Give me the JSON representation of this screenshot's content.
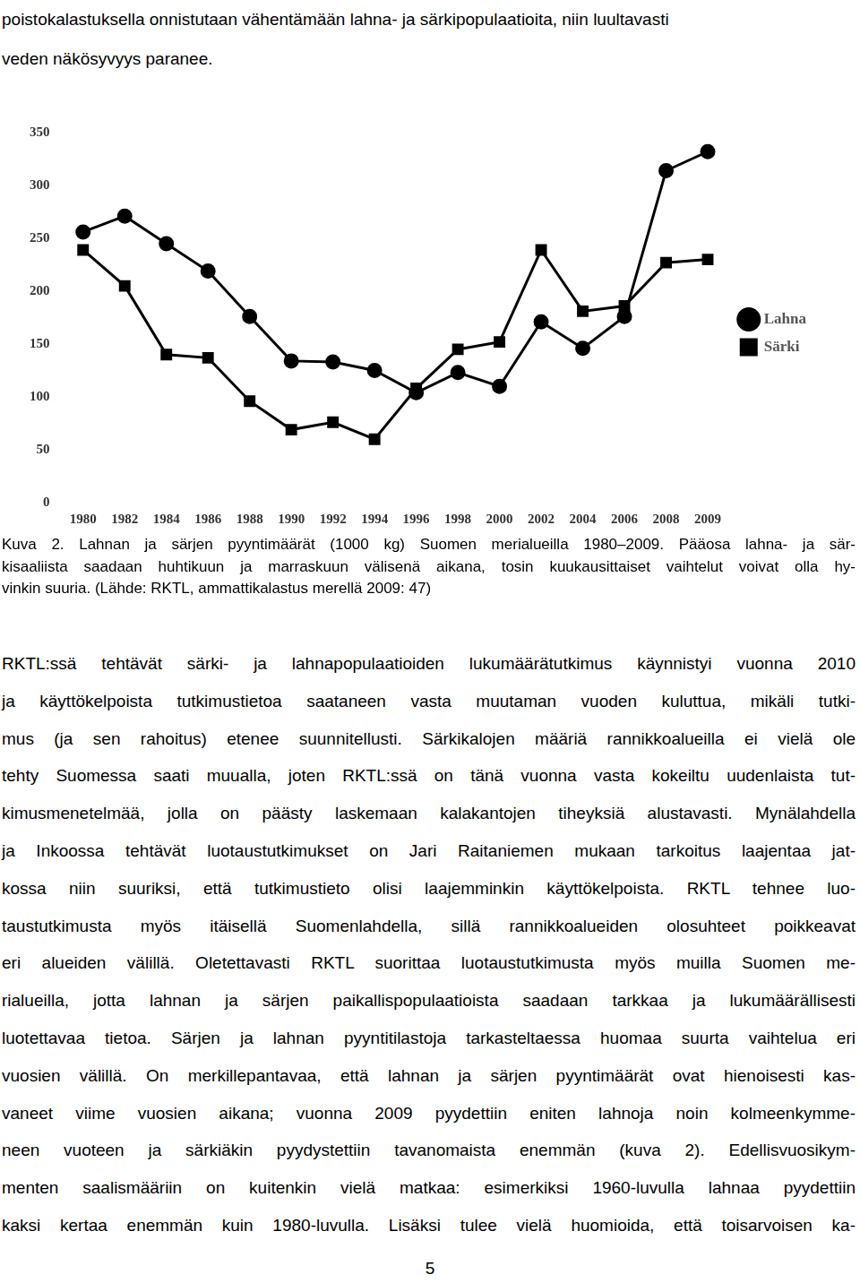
{
  "document": {
    "top_text": [
      "poistokalastuksella onnistutaan vähentämään lahna- ja särkipopulaatioita, niin luultavasti",
      "veden näkösyvyys paranee."
    ],
    "caption": [
      "Kuva 2. Lahnan ja särjen pyyntimäärät (1000 kg) Suomen merialueilla 1980–2009. Pääosa lahna- ja sär-",
      "kisaaliista saadaan huhtikuun ja marraskuun välisenä aikana, tosin kuukausittaiset vaihtelut voivat olla hy-",
      "vinkin suuria. (Lähde: RKTL, ammattikalastus merellä 2009: 47)"
    ],
    "body": [
      "RKTL:ssä tehtävät särki- ja lahnapopulaatioiden lukumäärätutkimus käynnistyi vuonna 2010",
      "ja käyttökelpoista tutkimustietoa saataneen vasta muutaman vuoden kuluttua, mikäli tutki-",
      "mus (ja sen rahoitus) etenee suunnitellusti. Särkikalojen määriä rannikkoalueilla ei vielä ole",
      "tehty Suomessa saati muualla, joten RKTL:ssä on tänä vuonna vasta kokeiltu uudenlaista tut-",
      "kimusmenetelmää, jolla on päästy laskemaan kalakantojen tiheyksiä alustavasti. Mynälahdella",
      "ja Inkoossa tehtävät luotaustutkimukset on Jari Raitaniemen mukaan tarkoitus laajentaa jat-",
      "kossa niin suuriksi, että tutkimustieto olisi laajemminkin käyttökelpoista. RKTL tehnee luo-",
      "taustutkimusta myös itäisellä Suomenlahdella, sillä rannikkoalueiden olosuhteet poikkeavat",
      "eri alueiden välillä. Oletettavasti RKTL suorittaa luotaustutkimusta myös muilla Suomen me-",
      "rialueilla, jotta lahnan ja särjen paikallispopulaatioista saadaan tarkkaa ja lukumäärällisesti",
      "luotettavaa tietoa. Särjen ja lahnan pyyntitilastoja tarkasteltaessa huomaa suurta vaihtelua eri",
      "vuosien välillä. On merkillepantavaa, että lahnan ja särjen pyyntimäärät ovat hienoisesti kas-",
      "vaneet viime vuosien aikana; vuonna 2009 pyydettiin eniten lahnoja noin kolmeenkymme-",
      "neen vuoteen ja särkiäkin pyydystettiin tavanomaista enemmän (kuva 2). Edellisvuosikym-",
      "menten saalismääriin on kuitenkin vielä matkaa: esimerkiksi 1960-luvulla lahnaa pyydettiin",
      "kaksi kertaa enemmän kuin 1980-luvulla. Lisäksi tulee vielä huomioida, että toisarvoisen ka-"
    ],
    "page_number": "5"
  },
  "chart_data": {
    "type": "line",
    "categories": [
      "1980",
      "1982",
      "1984",
      "1986",
      "1988",
      "1990",
      "1992",
      "1994",
      "1996",
      "1998",
      "2000",
      "2002",
      "2004",
      "2006",
      "2008",
      "2009"
    ],
    "series": [
      {
        "name": "Lahna",
        "color": "#000000",
        "marker": "circle",
        "values": [
          256,
          271,
          245,
          219,
          176,
          134,
          133,
          125,
          104,
          123,
          110,
          171,
          146,
          176,
          314,
          332
        ]
      },
      {
        "name": "Särki",
        "color": "#000000",
        "marker": "square",
        "values": [
          239,
          205,
          140,
          137,
          96,
          69,
          76,
          60,
          108,
          145,
          152,
          239,
          181,
          186,
          227,
          230
        ]
      }
    ],
    "ylim": [
      0,
      350
    ],
    "yticks": [
      0,
      50,
      100,
      150,
      200,
      250,
      300,
      350
    ],
    "grid": false,
    "legend": "right"
  }
}
